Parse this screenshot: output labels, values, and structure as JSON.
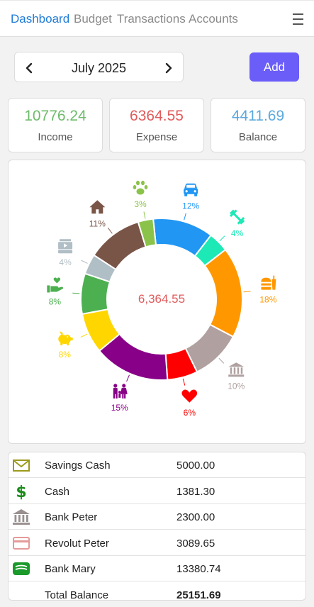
{
  "nav": {
    "tabs": [
      {
        "label": "Dashboard",
        "active": true
      },
      {
        "label": "Budget",
        "active": false
      },
      {
        "label": "Transactions",
        "active": false
      },
      {
        "label": "Accounts",
        "active": false
      }
    ],
    "menu_icon": "hamburger-icon"
  },
  "month_selector": {
    "label": "July 2025",
    "prev_icon": "chevron-left-icon",
    "next_icon": "chevron-right-icon"
  },
  "add_button": {
    "label": "Add"
  },
  "summary": {
    "income": {
      "value": "10776.24",
      "label": "Income",
      "color": "#6dbb6a"
    },
    "expense": {
      "value": "6364.55",
      "label": "Expense",
      "color": "#e15b5b"
    },
    "balance": {
      "value": "4411.69",
      "label": "Balance",
      "color": "#5aa9dc"
    }
  },
  "chart_data": {
    "type": "pie",
    "center_label": "6,364.55",
    "slices": [
      {
        "icon": "car-icon",
        "percent": 12,
        "label": "12%",
        "color": "#2196F3"
      },
      {
        "icon": "fitness-icon",
        "percent": 4,
        "label": "4%",
        "color": "#1DE9B6"
      },
      {
        "icon": "fastfood-icon",
        "percent": 18,
        "label": "18%",
        "color": "#FF9800"
      },
      {
        "icon": "bank-icon",
        "percent": 10,
        "label": "10%",
        "color": "#B0A0A0"
      },
      {
        "icon": "heart-icon",
        "percent": 6,
        "label": "6%",
        "color": "#FF0000"
      },
      {
        "icon": "family-icon",
        "percent": 15,
        "label": "15%",
        "color": "#880088"
      },
      {
        "icon": "piggy-bank-icon",
        "percent": 8,
        "label": "8%",
        "color": "#FFD600"
      },
      {
        "icon": "hand-heart-icon",
        "percent": 8,
        "label": "8%",
        "color": "#4CAF50"
      },
      {
        "icon": "cash-register-icon",
        "percent": 4,
        "label": "4%",
        "color": "#B0BEC5"
      },
      {
        "icon": "home-icon",
        "percent": 11,
        "label": "11%",
        "color": "#795548"
      },
      {
        "icon": "paw-icon",
        "percent": 3,
        "label": "3%",
        "color": "#8BC34A"
      }
    ]
  },
  "accounts": [
    {
      "icon": "envelope-icon",
      "icon_color": "#9c9a1c",
      "name": "Savings Cash",
      "amount": "5000.00"
    },
    {
      "icon": "dollar-icon",
      "icon_color": "#1a8a1a",
      "name": "Cash",
      "amount": "1381.30"
    },
    {
      "icon": "bank-icon",
      "icon_color": "#9a9090",
      "name": "Bank Peter",
      "amount": "2300.00"
    },
    {
      "icon": "credit-card-icon",
      "icon_color": "#e59a9a",
      "name": "Revolut Peter",
      "amount": "3089.65"
    },
    {
      "icon": "wallet-icon",
      "icon_color": "#1a9a2a",
      "name": "Bank Mary",
      "amount": "13380.74"
    },
    {
      "icon": "",
      "icon_color": "",
      "name": "Total Balance",
      "amount": "25151.69",
      "bold": true
    }
  ]
}
